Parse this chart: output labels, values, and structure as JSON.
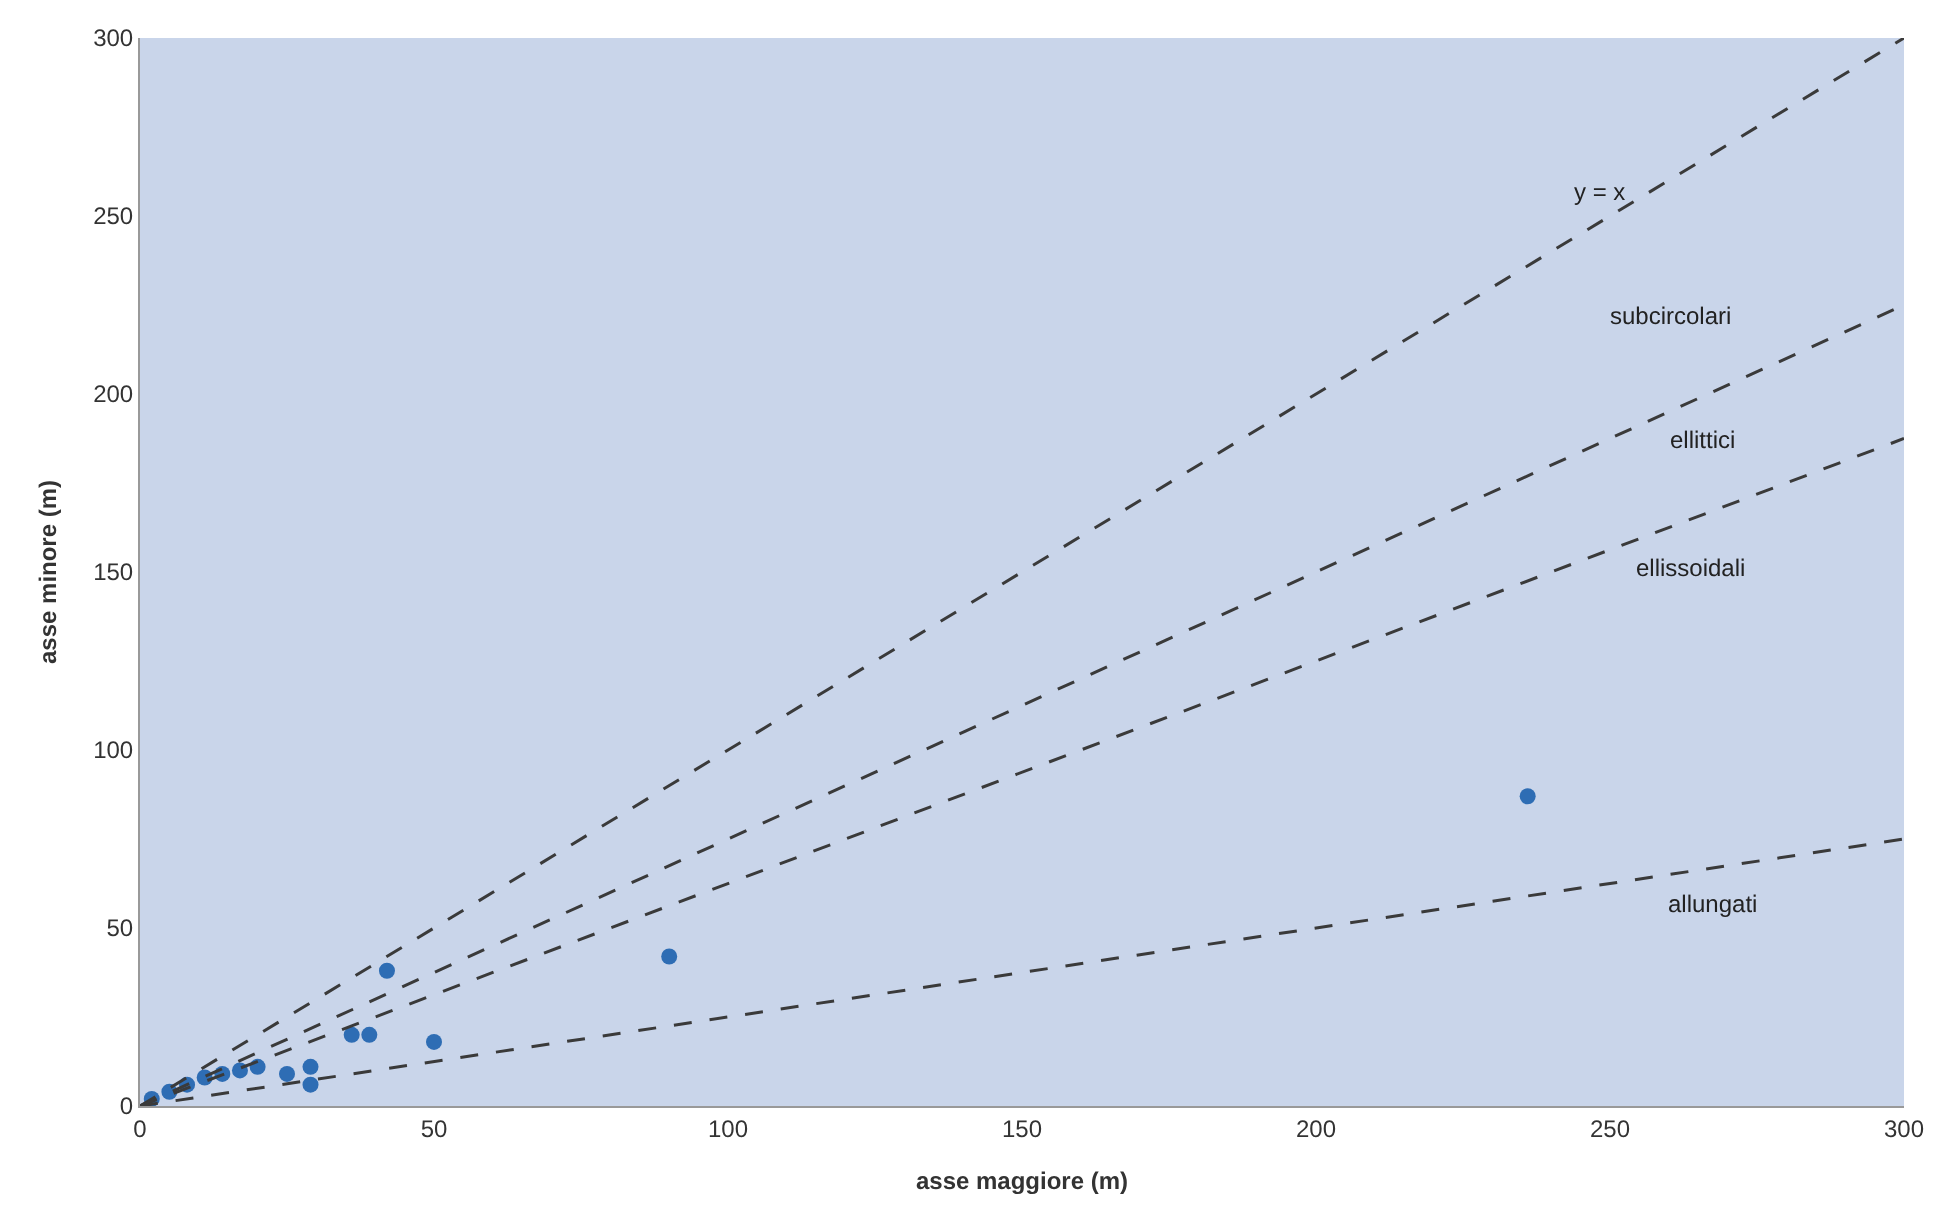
{
  "chart_data": {
    "type": "scatter",
    "xlabel": "asse maggiore (m)",
    "ylabel": "asse minore (m)",
    "xlim": [
      0,
      300
    ],
    "ylim": [
      0,
      300
    ],
    "xticks": [
      0,
      50,
      100,
      150,
      200,
      250,
      300
    ],
    "yticks": [
      0,
      50,
      100,
      150,
      200,
      250,
      300
    ],
    "grid": false,
    "marker": "circle",
    "series": [
      {
        "color": "#2e6db4",
        "x": [
          2,
          5,
          8,
          11,
          14,
          17,
          20,
          25,
          29,
          29,
          36,
          39,
          42,
          50,
          90,
          236
        ],
        "values": [
          2,
          4,
          6,
          8,
          9,
          10,
          11,
          9,
          11,
          6,
          20,
          20,
          38,
          18,
          42,
          87
        ]
      },
      {
        "type": "line",
        "color": "#3a3a3a",
        "line_style": "dashed",
        "marker": "none",
        "x": [
          0,
          300
        ],
        "values": [
          0,
          300
        ]
      },
      {
        "type": "line",
        "color": "#3a3a3a",
        "line_style": "dashed",
        "marker": "none",
        "x": [
          0,
          300
        ],
        "values": [
          0,
          225
        ]
      },
      {
        "type": "line",
        "color": "#3a3a3a",
        "line_style": "dashed",
        "marker": "none",
        "x": [
          0,
          300
        ],
        "values": [
          0,
          187.5
        ]
      },
      {
        "type": "line",
        "color": "#3a3a3a",
        "line_style": "dashed",
        "marker": "none",
        "x": [
          0,
          300
        ],
        "values": [
          0,
          75
        ]
      }
    ],
    "annotations": [
      "y = x",
      "subcircolari",
      "ellittici",
      "ellissoidali",
      "allungati"
    ]
  }
}
